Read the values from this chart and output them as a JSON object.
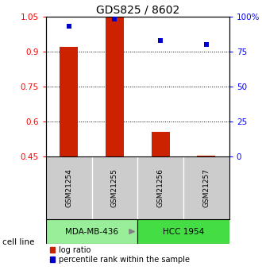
{
  "title": "GDS825 / 8602",
  "samples": [
    "GSM21254",
    "GSM21255",
    "GSM21256",
    "GSM21257"
  ],
  "log_ratio": [
    0.92,
    1.05,
    0.555,
    0.455
  ],
  "log_ratio_base": [
    0.45,
    0.45,
    0.45,
    0.45
  ],
  "percentile_rank": [
    93,
    98,
    83,
    80
  ],
  "cell_lines": [
    {
      "label": "MDA-MB-436",
      "samples": [
        0,
        1
      ],
      "color": "#99EE99"
    },
    {
      "label": "HCC 1954",
      "samples": [
        2,
        3
      ],
      "color": "#44DD44"
    }
  ],
  "ylim_left": [
    0.45,
    1.05
  ],
  "ylim_right": [
    0,
    100
  ],
  "yticks_left": [
    0.45,
    0.6,
    0.75,
    0.9,
    1.05
  ],
  "yticks_right": [
    0,
    25,
    50,
    75,
    100
  ],
  "ytick_labels_right": [
    "0",
    "25",
    "50",
    "75",
    "100%"
  ],
  "bar_color": "#CC2200",
  "dot_color": "#0000CC",
  "bg_color": "#FFFFFF",
  "sample_bg": "#CCCCCC",
  "legend_red_label": "log ratio",
  "legend_blue_label": "percentile rank within the sample"
}
